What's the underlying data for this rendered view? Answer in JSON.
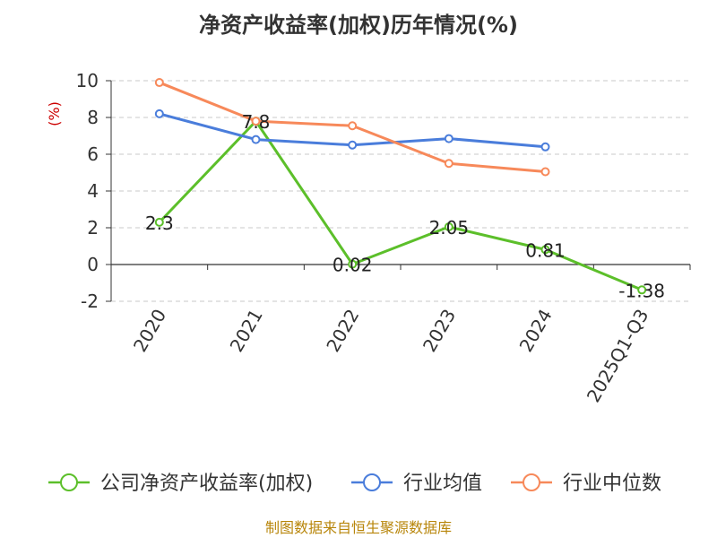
{
  "chart_data": {
    "type": "line",
    "title": "净资产收益率(加权)历年情况(%)",
    "ylabel": "(%)",
    "xlabel": "",
    "categories": [
      "2020",
      "2021",
      "2022",
      "2023",
      "2024",
      "2025Q1-Q3"
    ],
    "ylim": [
      -2,
      10
    ],
    "yticks": [
      -2,
      0,
      2,
      4,
      6,
      8,
      10
    ],
    "grid": true,
    "legend_position": "bottom",
    "series": [
      {
        "name": "公司净资产收益率(加权)",
        "color": "#5cbf2a",
        "values": [
          2.3,
          7.8,
          0.02,
          2.05,
          0.81,
          -1.38
        ],
        "labels": [
          "2.3",
          "7.8",
          "0.02",
          "2.05",
          "0.81",
          "-1.38"
        ]
      },
      {
        "name": "行业均值",
        "color": "#4a7ddb",
        "values": [
          8.2,
          6.8,
          6.5,
          6.85,
          6.4,
          null
        ]
      },
      {
        "name": "行业中位数",
        "color": "#f7895a",
        "values": [
          9.9,
          7.8,
          7.55,
          5.5,
          5.05,
          null
        ]
      }
    ],
    "source": "制图数据来自恒生聚源数据库"
  }
}
